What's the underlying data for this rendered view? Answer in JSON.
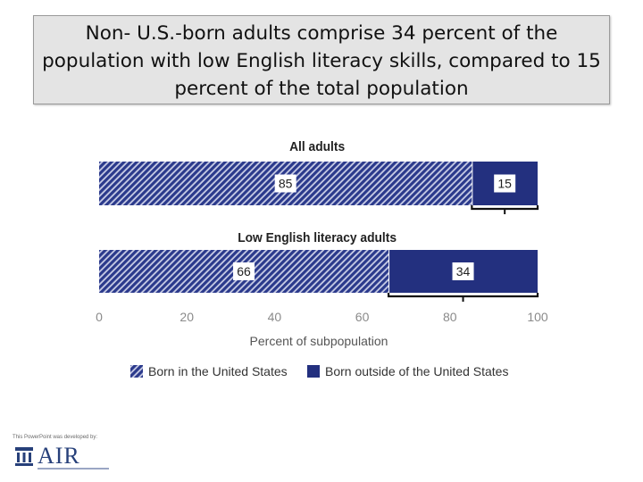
{
  "slide": {
    "title": "Non- U.S.-born adults comprise 34 percent of the population with low English literacy skills, compared to 15 percent of the total population",
    "credit": "This PowerPoint was developed by:",
    "logo_text": "AIR"
  },
  "colors": {
    "born_us": "#2b3a8c",
    "born_outside": "#23307f",
    "axis_text": "#8a8a8a",
    "group_label": "#222222"
  },
  "chart_data": {
    "type": "bar",
    "orientation": "horizontal",
    "stacked": true,
    "categories": [
      "All adults",
      "Low English literacy adults"
    ],
    "series": [
      {
        "name": "Born in the United States",
        "values": [
          85,
          66
        ],
        "pattern": "hatched"
      },
      {
        "name": "Born outside of the United States",
        "values": [
          15,
          34
        ],
        "pattern": "solid"
      }
    ],
    "xlabel": "Percent of subpopulation",
    "xlim": [
      0,
      100
    ],
    "xticks": [
      0,
      20,
      40,
      60,
      80,
      100
    ],
    "legend_position": "bottom"
  }
}
